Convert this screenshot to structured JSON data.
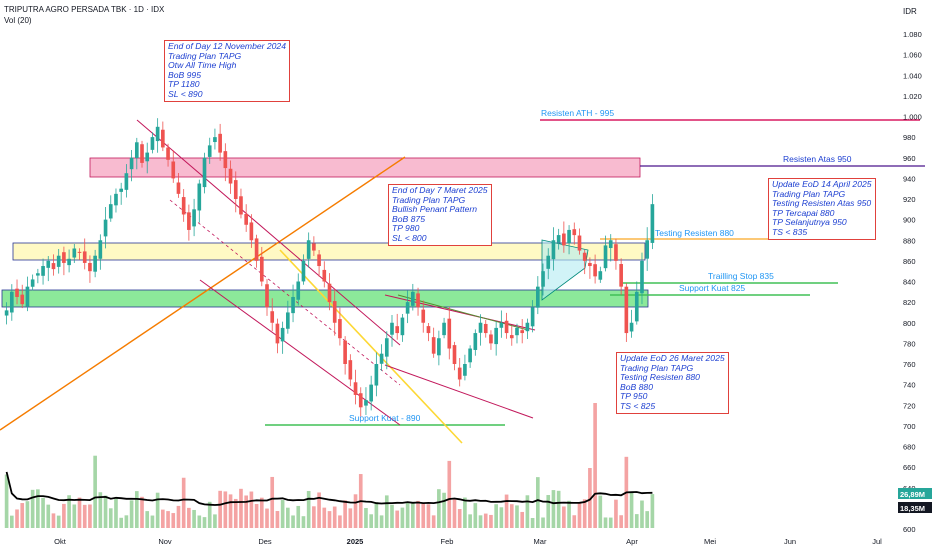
{
  "header": {
    "title": "TRIPUTRA AGRO PERSADA TBK · 1D · IDX",
    "volume_label": "Vol (20)",
    "currency": "IDR"
  },
  "colors": {
    "up": "#26a69a",
    "down": "#ef5350",
    "vol_up": "#a5d6a7",
    "vol_down": "#f4a3a3",
    "pink_zone": "#f48fb1",
    "yellow_zone": "#fff59d",
    "green_zone": "#69db7c",
    "note_border": "#e0413c",
    "note_text": "#1d3fd1",
    "level_text": "#2196f3"
  },
  "notes": [
    {
      "name": "note-nov-2024",
      "lines": [
        "End of Day 12 November 2024",
        "Trading Plan TAPG",
        "Otw All Time High",
        "BoB 995",
        "TP 1180",
        "SL < 890"
      ]
    },
    {
      "name": "note-mar-2025",
      "lines": [
        "End of Day 7 Maret 2025",
        "Trading Plan TAPG",
        "Bullish Penant Pattern",
        "BoB 875",
        "TP 980",
        "SL < 800"
      ]
    },
    {
      "name": "note-apr-2025",
      "lines": [
        "Update EoD 14 April 2025",
        "Trading Plan TAPG",
        "Testing Resisten Atas 950",
        "TP Tercapai 880",
        "TP Selanjutnya 950",
        "TS < 835"
      ]
    },
    {
      "name": "note-26-mar-2025",
      "lines": [
        "Update EoD 26 Maret 2025",
        "Trading Plan TAPG",
        "Testing Resisten 880",
        "BoB 880",
        "TP 950",
        "TS < 825"
      ]
    }
  ],
  "levels": {
    "resisten_ath": "Resisten ATH - 995",
    "resisten_atas": "Resisten Atas 950",
    "testing_resisten": "Testing Resisten 880",
    "trailing_stop": "Trailling Stop 835",
    "support_kuat_825": "Support Kuat 825",
    "support_kuat_890": "Support Kuat - 890"
  },
  "chart_data": {
    "type": "candlestick",
    "title": "TRIPUTRA AGRO PERSADA TBK · 1D · IDX",
    "price_axis": {
      "currency": "IDR",
      "range": [
        600,
        1090
      ],
      "ticks": [
        "1.080",
        "1.060",
        "1.040",
        "1.020",
        "1.000",
        "980",
        "960",
        "940",
        "920",
        "900",
        "880",
        "860",
        "840",
        "820",
        "800",
        "780",
        "760",
        "740",
        "720",
        "700",
        "680",
        "660",
        "640",
        "620",
        "600"
      ]
    },
    "time_axis": {
      "labels": [
        "Okt",
        "Nov",
        "Des",
        "2025",
        "Feb",
        "Mar",
        "Apr",
        "Mei",
        "Jun",
        "Jul"
      ]
    },
    "volume": {
      "label": "Vol (20)",
      "last_value": "26,89M",
      "ma_value": "18,35M"
    },
    "price_close_approx": [
      812,
      830,
      825,
      818,
      835,
      842,
      848,
      855,
      860,
      852,
      865,
      858,
      862,
      872,
      868,
      858,
      850,
      865,
      880,
      900,
      915,
      925,
      930,
      945,
      960,
      975,
      955,
      965,
      980,
      990,
      970,
      958,
      940,
      925,
      905,
      890,
      910,
      935,
      960,
      972,
      980,
      965,
      950,
      935,
      920,
      905,
      895,
      880,
      860,
      840,
      815,
      800,
      780,
      795,
      810,
      825,
      840,
      860,
      880,
      870,
      855,
      840,
      820,
      800,
      785,
      760,
      745,
      730,
      718,
      725,
      740,
      760,
      770,
      785,
      800,
      790,
      805,
      820,
      830,
      815,
      800,
      790,
      770,
      785,
      800,
      775,
      760,
      745,
      760,
      775,
      790,
      800,
      790,
      780,
      795,
      800,
      790,
      785,
      795,
      790,
      800,
      815,
      835,
      850,
      865,
      880,
      885,
      875,
      890,
      885,
      870,
      860,
      855,
      845,
      850,
      875,
      880,
      860,
      835,
      790,
      800,
      830,
      860,
      880,
      915
    ],
    "annotations": [
      "End of Day 12 November 2024",
      "End of Day 7 Maret 2025",
      "Update EoD 14 April 2025",
      "Update EoD 26 Maret 2025"
    ]
  }
}
